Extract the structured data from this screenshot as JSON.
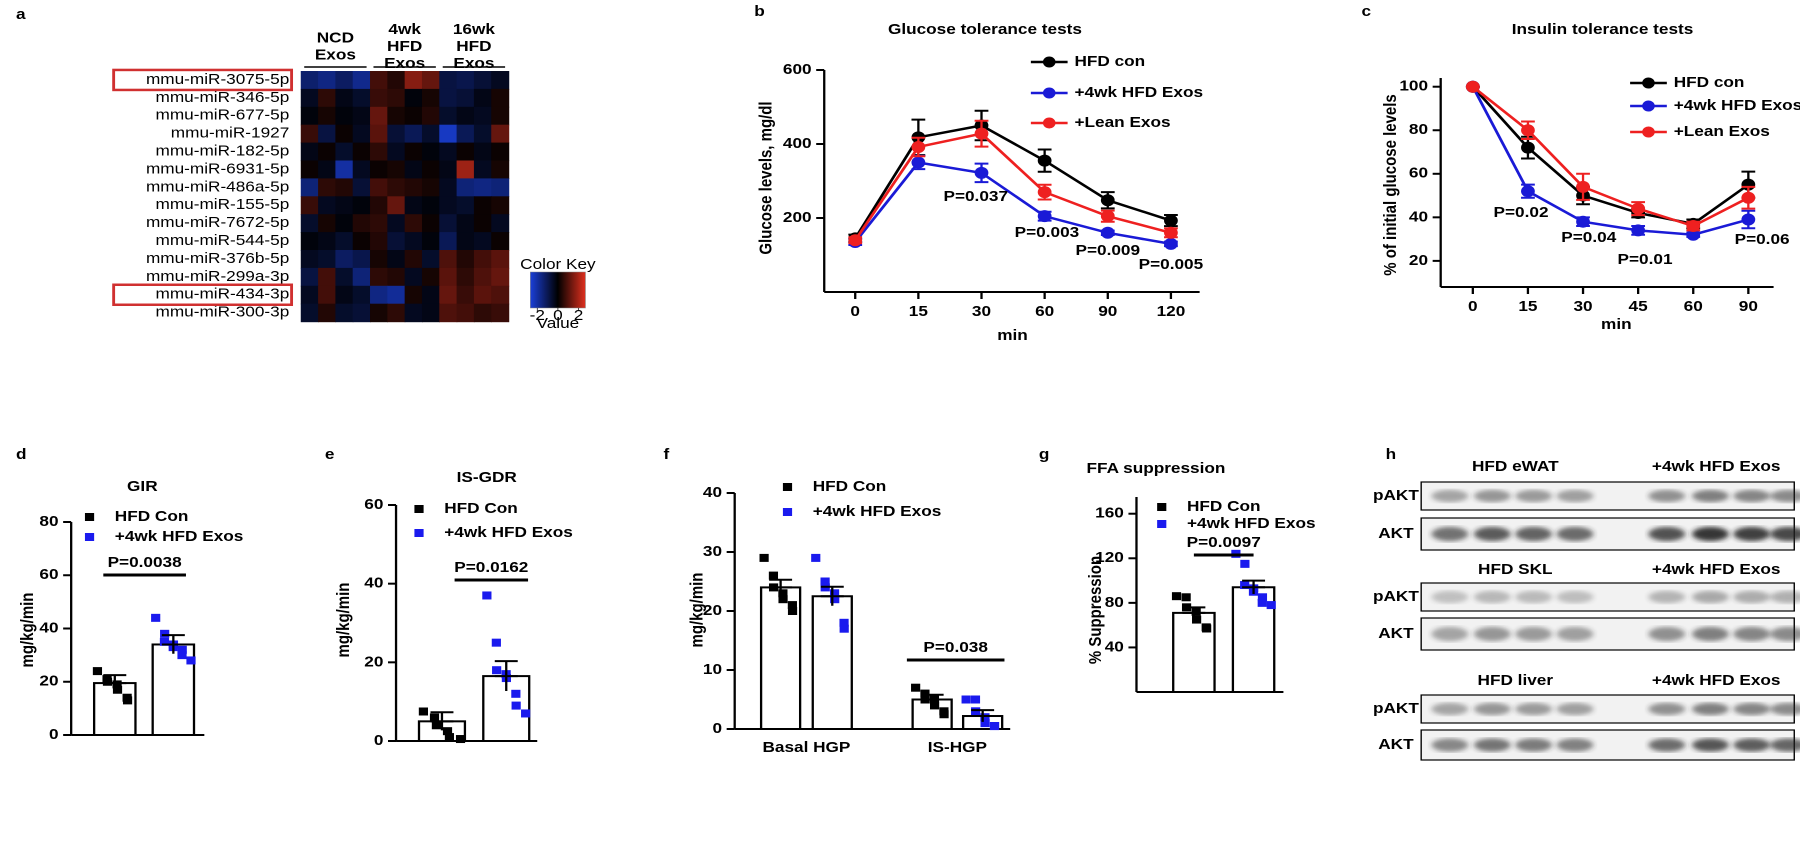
{
  "chart_data": [
    {
      "type": "heatmap",
      "panel": "a",
      "column_groups": [
        [
          "NCD",
          "Exos"
        ],
        [
          "4wk",
          "HFD",
          "Exos"
        ],
        [
          "16wk",
          "HFD",
          "Exos"
        ]
      ],
      "rows": [
        "mmu-miR-3075-5p",
        "mmu-miR-346-5p",
        "mmu-miR-677-5p",
        "mmu-miR-1927",
        "mmu-miR-182-5p",
        "mmu-miR-6931-5p",
        "mmu-miR-486a-5p",
        "mmu-miR-155-5p",
        "mmu-miR-7672-5p",
        "mmu-miR-544-5p",
        "mmu-miR-376b-5p",
        "mmu-miR-299a-3p",
        "mmu-miR-434-3p",
        "mmu-miR-300-3p"
      ],
      "highlight": [
        0,
        12
      ],
      "values": [
        [
          -1,
          -1.2,
          -0.9,
          -1.3,
          0.6,
          0.3,
          1.2,
          0.9,
          -0.6,
          -0.7,
          -0.5,
          -0.3
        ],
        [
          -0.3,
          0.4,
          -0.2,
          -0.4,
          0.5,
          0.4,
          -0.1,
          0.2,
          -0.6,
          -0.5,
          -0.2,
          0.2
        ],
        [
          -0.1,
          0.2,
          -0.1,
          -0.2,
          0.9,
          0.2,
          0.1,
          0.3,
          -0.4,
          -0.2,
          -0.3,
          0.2
        ],
        [
          0.5,
          -0.6,
          0.1,
          -0.3,
          0.8,
          -0.5,
          -0.8,
          -0.4,
          -1.8,
          -0.8,
          -0.4,
          0.9
        ],
        [
          -0.2,
          0.1,
          -0.4,
          0.1,
          0.4,
          -0.3,
          0.1,
          -0.1,
          -0.3,
          0.1,
          -0.2,
          0.1
        ],
        [
          0.1,
          -0.2,
          -1.5,
          -0.3,
          0.1,
          0.2,
          -0.2,
          0.1,
          -0.2,
          1.4,
          -0.3,
          0.2
        ],
        [
          -1.1,
          0.4,
          0.3,
          -0.5,
          0.6,
          0.4,
          0.3,
          0.2,
          -0.3,
          -1.1,
          -1.2,
          -1.1
        ],
        [
          0.5,
          -0.3,
          -0.2,
          -0.1,
          0.3,
          0.9,
          -0.2,
          -0.1,
          -0.3,
          -0.4,
          0.1,
          0.2
        ],
        [
          -0.4,
          0.2,
          -0.1,
          0.3,
          0.4,
          -0.3,
          0.4,
          0.1,
          -0.5,
          -0.2,
          0.1,
          -0.3
        ],
        [
          -0.1,
          -0.2,
          -0.4,
          0.1,
          0.3,
          -0.5,
          -0.3,
          -0.1,
          -0.8,
          -0.2,
          -0.3,
          0.1
        ],
        [
          -0.3,
          -0.4,
          -0.9,
          -0.7,
          0.2,
          -0.2,
          0.3,
          -0.4,
          0.7,
          0.3,
          0.6,
          0.8
        ],
        [
          -0.6,
          0.6,
          -0.4,
          -1.1,
          0.4,
          0.3,
          -0.3,
          0.2,
          0.8,
          0.4,
          0.7,
          0.9
        ],
        [
          -0.3,
          0.6,
          -0.2,
          -0.4,
          -1.2,
          -1.4,
          0.2,
          -0.2,
          0.9,
          0.5,
          0.8,
          0.7
        ],
        [
          -0.4,
          0.3,
          -0.4,
          -0.5,
          0.2,
          0.4,
          -0.3,
          -0.2,
          0.7,
          0.6,
          0.4,
          0.5
        ]
      ],
      "zlim": [
        -2,
        2
      ],
      "colors": [
        "#1a3fd8",
        "#000000",
        "#e0301e"
      ],
      "color_key": {
        "title": "Color Key",
        "ticks": [
          -2,
          0,
          2
        ],
        "label": "Value"
      }
    },
    {
      "type": "line",
      "panel": "b",
      "title": "Glucose tolerance tests",
      "ylabel": "Glucose levels, mg/dl",
      "xlabel": "min",
      "categories": [
        "0",
        "15",
        "30",
        "60",
        "90",
        "120"
      ],
      "ylim": [
        0,
        600
      ],
      "yticks": [
        200,
        400,
        600
      ],
      "series": [
        {
          "name": "HFD con",
          "color": "#000000",
          "values": [
            145,
            418,
            450,
            355,
            248,
            193
          ],
          "errors": [
            10,
            48,
            40,
            30,
            22,
            15
          ]
        },
        {
          "name": "+4wk HFD Exos",
          "color": "#1a1ad6",
          "values": [
            135,
            350,
            322,
            205,
            160,
            130
          ],
          "errors": [
            8,
            18,
            25,
            12,
            6,
            6
          ]
        },
        {
          "name": "+Lean Exos",
          "color": "#ee2020",
          "values": [
            140,
            392,
            428,
            270,
            205,
            160
          ],
          "errors": [
            8,
            25,
            35,
            20,
            15,
            12
          ]
        }
      ],
      "annotations": [
        "P=0.037",
        "P=0.003",
        "P=0.009",
        "P=0.005"
      ]
    },
    {
      "type": "line",
      "panel": "c",
      "title": "Insulin tolerance tests",
      "ylabel": "% of initial glucose levels",
      "xlabel": "min",
      "categories": [
        "0",
        "15",
        "30",
        "45",
        "60",
        "90"
      ],
      "ylim": [
        8,
        104
      ],
      "yticks": [
        20,
        40,
        60,
        80,
        100
      ],
      "series": [
        {
          "name": "HFD con",
          "color": "#000000",
          "values": [
            100,
            72,
            50,
            42,
            37,
            55
          ],
          "errors": [
            0,
            5,
            4,
            2,
            2,
            6
          ]
        },
        {
          "name": "+4wk HFD Exos",
          "color": "#1a1ad6",
          "values": [
            100,
            52,
            38,
            34,
            32,
            39
          ],
          "errors": [
            0,
            3,
            2,
            2,
            1,
            4
          ]
        },
        {
          "name": "+Lean Exos",
          "color": "#ee2020",
          "values": [
            100,
            80,
            54,
            44,
            36,
            49
          ],
          "errors": [
            0,
            4,
            6,
            3,
            2,
            5
          ]
        }
      ],
      "annotations": [
        "P=0.02",
        "P=0.04",
        "P=0.01",
        "P=0.06"
      ]
    },
    {
      "type": "bar",
      "panel": "d",
      "title": "GIR",
      "ylabel": "mg/kg/min",
      "categories": [
        null
      ],
      "ylim": [
        0,
        80
      ],
      "yticks": [
        0,
        20,
        40,
        60,
        80
      ],
      "series": [
        {
          "name": "HFD Con",
          "color": "#000000",
          "values": [
            19.5
          ],
          "errors": [
            3
          ],
          "points": [
            [
              24,
              21,
              20,
              19,
              17,
              14,
              13
            ]
          ]
        },
        {
          "name": "+4wk HFD Exos",
          "color": "#1a1aee",
          "values": [
            34
          ],
          "errors": [
            3.5
          ],
          "points": [
            [
              44,
              38,
              35,
              34,
              33,
              32,
              30,
              28
            ]
          ]
        }
      ],
      "annotations": [
        "P=0.0038"
      ]
    },
    {
      "type": "bar",
      "panel": "e",
      "title": "IS-GDR",
      "ylabel": "mg/kg/min",
      "categories": [
        null
      ],
      "ylim": [
        0,
        60
      ],
      "yticks": [
        0,
        20,
        40,
        60
      ],
      "series": [
        {
          "name": "HFD Con",
          "color": "#000000",
          "values": [
            5
          ],
          "errors": [
            2.3
          ],
          "points": [
            [
              7.5,
              6,
              4,
              2.5,
              1,
              0.5
            ]
          ]
        },
        {
          "name": "+4wk HFD Exos",
          "color": "#1a1aee",
          "values": [
            16.5
          ],
          "errors": [
            3.8
          ],
          "points": [
            [
              37,
              25,
              18,
              17,
              16,
              12,
              9,
              7
            ]
          ]
        }
      ],
      "annotations": [
        "P=0.0162"
      ]
    },
    {
      "type": "bar",
      "panel": "f",
      "ylabel": "mg/kg/min",
      "categories": [
        "Basal HGP",
        "IS-HGP"
      ],
      "ylim": [
        0,
        40
      ],
      "yticks": [
        0,
        10,
        20,
        30,
        40
      ],
      "series": [
        {
          "name": "HFD Con",
          "color": "#000000",
          "values": [
            24,
            5
          ],
          "errors": [
            1.3,
            0.8
          ],
          "points": [
            [
              29,
              26,
              24,
              23,
              22,
              21,
              20
            ],
            [
              7,
              6,
              5,
              5,
              4,
              3,
              2.5
            ]
          ]
        },
        {
          "name": "+4wk HFD Exos",
          "color": "#1a1aee",
          "values": [
            22.5,
            2.2
          ],
          "errors": [
            1.6,
            1
          ],
          "points": [
            [
              29,
              25,
              24,
              23,
              22,
              18,
              17
            ],
            [
              5,
              5,
              3,
              2,
              1,
              0.5,
              0.5
            ]
          ]
        }
      ],
      "annotations": [
        "P=0.038"
      ]
    },
    {
      "type": "bar",
      "panel": "g",
      "title": "FFA suppression",
      "ylabel": "% Suppression",
      "categories": [
        null
      ],
      "ylim": [
        0,
        175
      ],
      "yticks": [
        40,
        80,
        120,
        160
      ],
      "series": [
        {
          "name": "HFD Con",
          "color": "#000000",
          "values": [
            71
          ],
          "errors": [
            5
          ],
          "points": [
            [
              86,
              85,
              76,
              72,
              65,
              58,
              57
            ]
          ]
        },
        {
          "name": "+4wk HFD Exos",
          "color": "#1a1aee",
          "values": [
            94
          ],
          "errors": [
            6
          ],
          "points": [
            [
              124,
              115,
              96,
              93,
              90,
              85,
              80,
              78
            ]
          ]
        }
      ],
      "annotations": [
        "P=0.0097"
      ]
    }
  ],
  "blots": {
    "panel": "h",
    "groups": [
      {
        "left": "HFD eWAT",
        "right": "+4wk HFD Exos",
        "rows": [
          "pAKT",
          "AKT"
        ]
      },
      {
        "left": "HFD SKL",
        "right": "+4wk HFD Exos",
        "rows": [
          "pAKT",
          "AKT"
        ]
      },
      {
        "left": "HFD liver",
        "right": "+4wk HFD Exos",
        "rows": [
          "pAKT",
          "AKT"
        ]
      }
    ]
  }
}
